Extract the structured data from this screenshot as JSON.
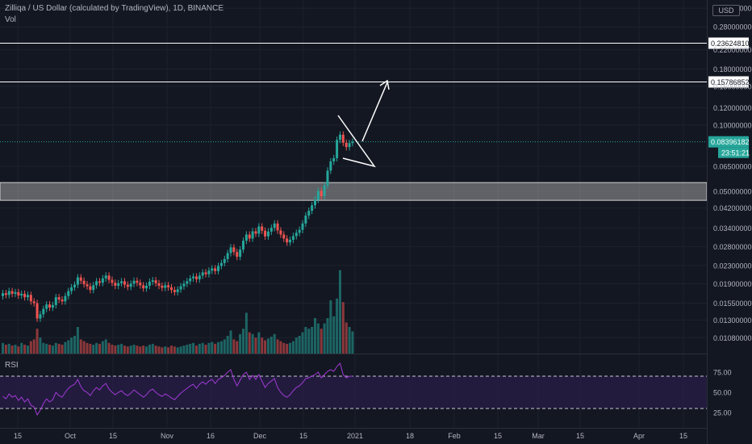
{
  "header": {
    "title": "Zilliqa / US Dollar (calculated by TradingView), 1D, BINANCE",
    "vol_label": "Vol",
    "currency_button": "USD",
    "rsi_label": "RSI"
  },
  "colors": {
    "background": "#131722",
    "up": "#26a69a",
    "down": "#ef5350",
    "rsi_line": "#a23ad6",
    "rsi_band": "#2a1e4a",
    "zone": "#9e9e9e",
    "grid": "#1e222d"
  },
  "chart_data": [
    {
      "type": "candlestick",
      "title": "Zilliqa / US Dollar (calculated by TradingView), 1D, BINANCE",
      "scale": "log",
      "price_ticks": [
        "0.34000000",
        "0.28000000",
        "0.22000000",
        "0.18000000",
        "0.15000000",
        "0.12000000",
        "0.10000000",
        "0.06500000",
        "0.05000000",
        "0.04200000",
        "0.03400000",
        "0.02800000",
        "0.02300000",
        "0.01900000",
        "0.01550000",
        "0.01300000",
        "0.01080000"
      ],
      "time_ticks": [
        "15",
        "Oct",
        "15",
        "Nov",
        "16",
        "Dec",
        "15",
        "2021",
        "18",
        "Feb",
        "15",
        "Mar",
        "15",
        "Apr",
        "15"
      ],
      "horizontal_lines": [
        {
          "value": 0.2362481,
          "label": "0.23624810"
        },
        {
          "value": 0.15786852,
          "label": "0.15786852"
        }
      ],
      "last_price": {
        "value": 0.08396182,
        "label": "0.08396182",
        "countdown": "23:51:21"
      },
      "support_zone": [
        0.0455,
        0.0548
      ],
      "candles_close": [
        0.0172,
        0.0169,
        0.0176,
        0.0171,
        0.0174,
        0.0168,
        0.0171,
        0.0165,
        0.0169,
        0.0158,
        0.0155,
        0.0132,
        0.0138,
        0.0146,
        0.0153,
        0.0148,
        0.0152,
        0.0165,
        0.0161,
        0.0158,
        0.0167,
        0.0176,
        0.0183,
        0.0188,
        0.0203,
        0.0196,
        0.0189,
        0.0185,
        0.0178,
        0.0187,
        0.0195,
        0.0192,
        0.0201,
        0.0207,
        0.0198,
        0.0192,
        0.0186,
        0.0191,
        0.0195,
        0.0188,
        0.0184,
        0.019,
        0.0196,
        0.0192,
        0.0187,
        0.0181,
        0.0186,
        0.0194,
        0.0197,
        0.0191,
        0.0186,
        0.0182,
        0.0187,
        0.0183,
        0.0178,
        0.0174,
        0.0179,
        0.0185,
        0.019,
        0.0195,
        0.0201,
        0.0205,
        0.0199,
        0.0207,
        0.0214,
        0.021,
        0.0218,
        0.0223,
        0.0217,
        0.0229,
        0.0236,
        0.0246,
        0.0262,
        0.0278,
        0.0265,
        0.0252,
        0.0272,
        0.0298,
        0.0318,
        0.0305,
        0.0329,
        0.0321,
        0.0346,
        0.0331,
        0.0312,
        0.0328,
        0.0341,
        0.0357,
        0.0332,
        0.0318,
        0.0305,
        0.0293,
        0.0301,
        0.0313,
        0.0324,
        0.0334,
        0.0357,
        0.0388,
        0.0408,
        0.0432,
        0.0458,
        0.0502,
        0.0475,
        0.0532,
        0.0621,
        0.0684,
        0.0708,
        0.0857,
        0.0905,
        0.0832,
        0.0795,
        0.0829,
        0.084
      ],
      "candles_open": [
        0.0167,
        0.0172,
        0.0169,
        0.0176,
        0.0171,
        0.0174,
        0.0168,
        0.0171,
        0.0165,
        0.0169,
        0.0158,
        0.0155,
        0.0132,
        0.0138,
        0.0146,
        0.0153,
        0.0148,
        0.0152,
        0.0165,
        0.0161,
        0.0158,
        0.0167,
        0.0176,
        0.0183,
        0.0188,
        0.0203,
        0.0196,
        0.0189,
        0.0185,
        0.0178,
        0.0187,
        0.0195,
        0.0192,
        0.0201,
        0.0207,
        0.0198,
        0.0192,
        0.0186,
        0.0191,
        0.0195,
        0.0188,
        0.0184,
        0.019,
        0.0196,
        0.0192,
        0.0187,
        0.0181,
        0.0186,
        0.0194,
        0.0197,
        0.0191,
        0.0186,
        0.0182,
        0.0187,
        0.0183,
        0.0178,
        0.0174,
        0.0179,
        0.0185,
        0.019,
        0.0195,
        0.0201,
        0.0205,
        0.0199,
        0.0207,
        0.0214,
        0.021,
        0.0218,
        0.0223,
        0.0217,
        0.0229,
        0.0236,
        0.0246,
        0.0262,
        0.0278,
        0.0265,
        0.0252,
        0.0272,
        0.0298,
        0.0318,
        0.0305,
        0.0329,
        0.0321,
        0.0346,
        0.0331,
        0.0312,
        0.0328,
        0.0341,
        0.0357,
        0.0332,
        0.0318,
        0.0305,
        0.0293,
        0.0301,
        0.0313,
        0.0324,
        0.0334,
        0.0357,
        0.0388,
        0.0408,
        0.0432,
        0.0458,
        0.0502,
        0.0475,
        0.0532,
        0.0621,
        0.0684,
        0.0708,
        0.0857,
        0.0905,
        0.0832,
        0.0795,
        0.0829
      ],
      "volume_relative": [
        0.12,
        0.1,
        0.11,
        0.09,
        0.1,
        0.08,
        0.12,
        0.1,
        0.09,
        0.14,
        0.16,
        0.28,
        0.18,
        0.12,
        0.11,
        0.1,
        0.09,
        0.12,
        0.11,
        0.1,
        0.13,
        0.15,
        0.18,
        0.2,
        0.3,
        0.16,
        0.14,
        0.12,
        0.11,
        0.1,
        0.12,
        0.11,
        0.14,
        0.16,
        0.12,
        0.1,
        0.09,
        0.1,
        0.11,
        0.09,
        0.08,
        0.09,
        0.1,
        0.09,
        0.08,
        0.09,
        0.08,
        0.1,
        0.11,
        0.09,
        0.08,
        0.07,
        0.08,
        0.07,
        0.09,
        0.08,
        0.07,
        0.08,
        0.09,
        0.1,
        0.11,
        0.12,
        0.09,
        0.11,
        0.12,
        0.1,
        0.12,
        0.13,
        0.11,
        0.13,
        0.14,
        0.16,
        0.2,
        0.26,
        0.16,
        0.14,
        0.22,
        0.28,
        0.46,
        0.24,
        0.22,
        0.18,
        0.24,
        0.18,
        0.15,
        0.17,
        0.19,
        0.22,
        0.16,
        0.14,
        0.12,
        0.11,
        0.12,
        0.14,
        0.18,
        0.2,
        0.24,
        0.3,
        0.28,
        0.3,
        0.4,
        0.34,
        0.28,
        0.34,
        0.4,
        0.6,
        0.42,
        0.62,
        0.94,
        0.58,
        0.35,
        0.3,
        0.25
      ]
    },
    {
      "type": "line",
      "title": "RSI",
      "ticks": [
        "75.00",
        "50.00",
        "25.00"
      ],
      "band": [
        30,
        70
      ],
      "values": [
        45,
        42,
        48,
        44,
        46,
        40,
        44,
        38,
        42,
        34,
        32,
        22,
        28,
        36,
        42,
        38,
        41,
        50,
        46,
        44,
        50,
        55,
        58,
        60,
        66,
        57,
        52,
        50,
        46,
        52,
        56,
        53,
        58,
        61,
        54,
        50,
        47,
        50,
        52,
        48,
        46,
        49,
        53,
        50,
        47,
        44,
        47,
        52,
        54,
        50,
        47,
        45,
        48,
        46,
        43,
        41,
        45,
        49,
        52,
        55,
        58,
        60,
        55,
        60,
        63,
        60,
        64,
        66,
        61,
        66,
        68,
        71,
        75,
        78,
        66,
        58,
        65,
        72,
        75,
        66,
        71,
        66,
        72,
        64,
        56,
        61,
        64,
        67,
        56,
        50,
        46,
        44,
        47,
        52,
        56,
        58,
        62,
        67,
        68,
        70,
        72,
        75,
        68,
        72,
        76,
        78,
        76,
        82,
        86,
        72,
        68,
        70,
        70
      ]
    }
  ]
}
